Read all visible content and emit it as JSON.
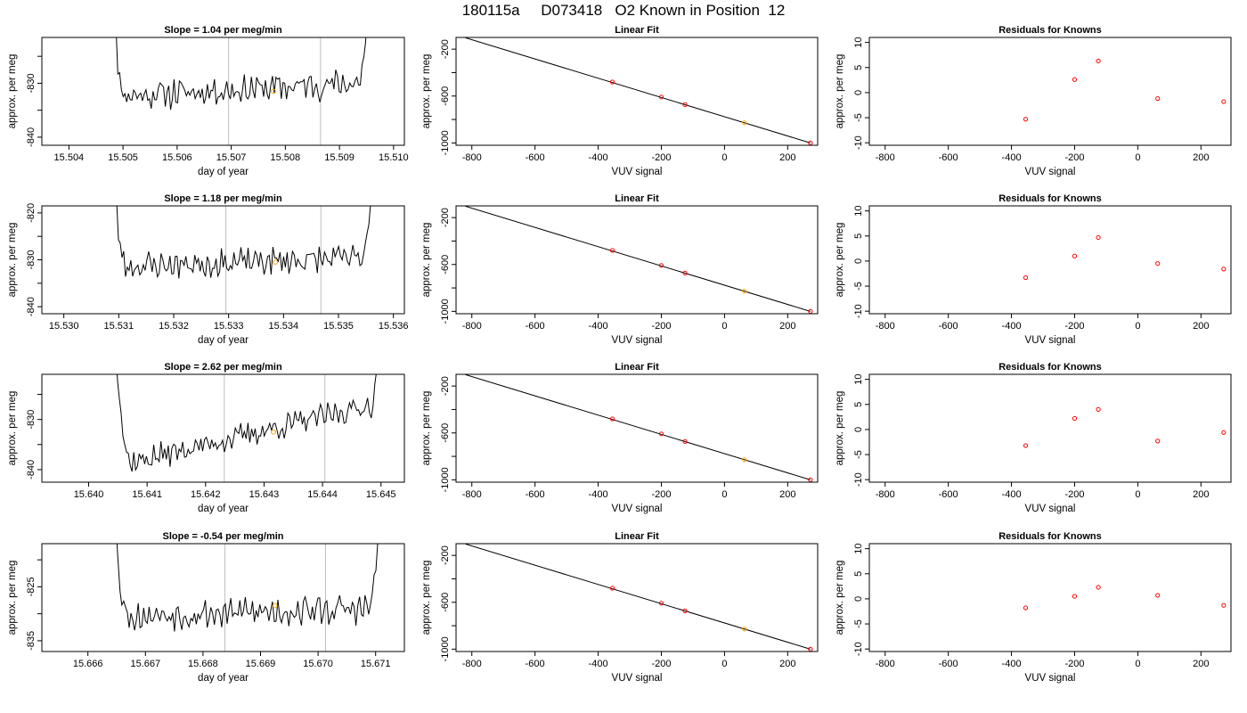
{
  "header": {
    "title": "180115a     D073418   O2 Known in Position  12"
  },
  "colors": {
    "line": "#000000",
    "vline": "#bebebe",
    "known_point": "#ff0000",
    "marker": "#ffa500",
    "frame": "#000000"
  },
  "chart_data": [
    {
      "type": "line",
      "row": 1,
      "title": "Slope =  1.04  per meg/min",
      "xlabel": "day of year",
      "ylabel": "approx. per meg",
      "xlim": [
        15.5035,
        15.5102
      ],
      "ylim": [
        -841.5,
        -821.5
      ],
      "xticks": [
        15.504,
        15.505,
        15.506,
        15.507,
        15.508,
        15.509,
        15.51
      ],
      "xticklabels": [
        "15.504",
        "15.505",
        "15.506",
        "15.507",
        "15.508",
        "15.509",
        "15.510"
      ],
      "yticks": [
        -840,
        -835,
        -830,
        -825
      ],
      "yticklabels": [
        "-840",
        "",
        "-830",
        ""
      ],
      "vlines": [
        15.50695,
        15.50865
      ],
      "marker": {
        "x": 15.50778,
        "y": -831.5
      },
      "trace": {
        "x_start": 15.50471,
        "x_end": 15.50958,
        "baseline_start": -832.5,
        "baseline_end": -829.8,
        "noise": 2.2,
        "seed": 11
      }
    },
    {
      "type": "scatter",
      "row": 1,
      "title": "Linear Fit",
      "xlabel": "VUV signal",
      "ylabel": "approx. per meg",
      "xlim": [
        -850,
        295
      ],
      "ylim": [
        -1020,
        -100
      ],
      "xticks": [
        -800,
        -600,
        -400,
        -200,
        0,
        200
      ],
      "xticklabels": [
        "-800",
        "-600",
        "-400",
        "-200",
        "0",
        "200"
      ],
      "yticks": [
        -1000,
        -800,
        -600,
        -400,
        -200
      ],
      "yticklabels": [
        "-1000",
        "",
        "-600",
        "",
        "-200"
      ],
      "points": [
        [
          -355,
          -480
        ],
        [
          -200,
          -608
        ],
        [
          -125,
          -673
        ],
        [
          63,
          -828
        ],
        [
          272,
          -1000
        ]
      ],
      "highlight_index": 3,
      "fit_line": {
        "x": [
          -820,
          272
        ],
        "y": [
          -103,
          -1000
        ]
      }
    },
    {
      "type": "scatter",
      "row": 1,
      "title": "Residuals for Knowns",
      "xlabel": "VUV signal",
      "ylabel": "approx. per meg",
      "xlim": [
        -850,
        295
      ],
      "ylim": [
        -10.5,
        11
      ],
      "xticks": [
        -800,
        -600,
        -400,
        -200,
        0,
        200
      ],
      "xticklabels": [
        "-800",
        "-600",
        "-400",
        "-200",
        "0",
        "200"
      ],
      "yticks": [
        -10,
        -5,
        0,
        5,
        10
      ],
      "yticklabels": [
        "-10",
        "-5",
        "0",
        "5",
        "10"
      ],
      "points": [
        [
          -355,
          -5.3
        ],
        [
          -200,
          2.6
        ],
        [
          -125,
          6.3
        ],
        [
          63,
          -1.2
        ],
        [
          272,
          -1.8
        ]
      ]
    },
    {
      "type": "line",
      "row": 2,
      "title": "Slope =  1.18  per meg/min",
      "xlabel": "day of year",
      "ylabel": "approx. per meg",
      "xlim": [
        15.5296,
        15.5362
      ],
      "ylim": [
        -841.5,
        -818.5
      ],
      "xticks": [
        15.53,
        15.531,
        15.532,
        15.533,
        15.534,
        15.535,
        15.536
      ],
      "xticklabels": [
        "15.530",
        "15.531",
        "15.532",
        "15.533",
        "15.534",
        "15.535",
        "15.536"
      ],
      "yticks": [
        -840,
        -835,
        -830,
        -825,
        -820
      ],
      "yticklabels": [
        "-840",
        "",
        "-830",
        "",
        "-820"
      ],
      "vlines": [
        15.53295,
        15.53468
      ],
      "marker": {
        "x": 15.53385,
        "y": -830.5
      },
      "trace": {
        "x_start": 15.5308,
        "x_end": 15.53565,
        "baseline_start": -831.5,
        "baseline_end": -829.5,
        "noise": 2.4,
        "seed": 23
      }
    },
    {
      "type": "scatter",
      "row": 2,
      "title": "Linear Fit",
      "xlabel": "VUV signal",
      "ylabel": "approx. per meg",
      "xlim": [
        -850,
        295
      ],
      "ylim": [
        -1020,
        -100
      ],
      "xticks": [
        -800,
        -600,
        -400,
        -200,
        0,
        200
      ],
      "xticklabels": [
        "-800",
        "-600",
        "-400",
        "-200",
        "0",
        "200"
      ],
      "yticks": [
        -1000,
        -800,
        -600,
        -400,
        -200
      ],
      "yticklabels": [
        "-1000",
        "",
        "-600",
        "",
        "-200"
      ],
      "points": [
        [
          -355,
          -480
        ],
        [
          -200,
          -608
        ],
        [
          -125,
          -673
        ],
        [
          63,
          -828
        ],
        [
          272,
          -1000
        ]
      ],
      "highlight_index": 3,
      "fit_line": {
        "x": [
          -820,
          272
        ],
        "y": [
          -103,
          -1000
        ]
      }
    },
    {
      "type": "scatter",
      "row": 2,
      "title": "Residuals for Knowns",
      "xlabel": "VUV signal",
      "ylabel": "approx. per meg",
      "xlim": [
        -850,
        295
      ],
      "ylim": [
        -10.5,
        11
      ],
      "xticks": [
        -800,
        -600,
        -400,
        -200,
        0,
        200
      ],
      "xticklabels": [
        "-800",
        "-600",
        "-400",
        "-200",
        "0",
        "200"
      ],
      "yticks": [
        -10,
        -5,
        0,
        5,
        10
      ],
      "yticklabels": [
        "-10",
        "-5",
        "0",
        "5",
        "10"
      ],
      "points": [
        [
          -355,
          -3.3
        ],
        [
          -200,
          1.0
        ],
        [
          -125,
          4.7
        ],
        [
          63,
          -0.5
        ],
        [
          272,
          -1.6
        ]
      ]
    },
    {
      "type": "line",
      "row": 3,
      "title": "Slope =  2.62  per meg/min",
      "xlabel": "day of year",
      "ylabel": "approx. per meg",
      "xlim": [
        15.6392,
        15.6454
      ],
      "ylim": [
        -842.5,
        -821
      ],
      "xticks": [
        15.64,
        15.641,
        15.642,
        15.643,
        15.644,
        15.645
      ],
      "xticklabels": [
        "15.640",
        "15.641",
        "15.642",
        "15.643",
        "15.644",
        "15.645"
      ],
      "yticks": [
        -840,
        -835,
        -830,
        -825
      ],
      "yticklabels": [
        "-840",
        "",
        "-830",
        ""
      ],
      "vlines": [
        15.64232,
        15.64404
      ],
      "marker": {
        "x": 15.64316,
        "y": -832.5
      },
      "trace": {
        "x_start": 15.6404,
        "x_end": 15.64505,
        "baseline_start": -839.5,
        "baseline_end": -826.5,
        "noise": 2.0,
        "seed": 37
      }
    },
    {
      "type": "scatter",
      "row": 3,
      "title": "Linear Fit",
      "xlabel": "VUV signal",
      "ylabel": "approx. per meg",
      "xlim": [
        -850,
        295
      ],
      "ylim": [
        -1020,
        -100
      ],
      "xticks": [
        -800,
        -600,
        -400,
        -200,
        0,
        200
      ],
      "xticklabels": [
        "-800",
        "-600",
        "-400",
        "-200",
        "0",
        "200"
      ],
      "yticks": [
        -1000,
        -800,
        -600,
        -400,
        -200
      ],
      "yticklabels": [
        "-1000",
        "",
        "-600",
        "",
        "-200"
      ],
      "points": [
        [
          -355,
          -480
        ],
        [
          -200,
          -608
        ],
        [
          -125,
          -673
        ],
        [
          63,
          -828
        ],
        [
          272,
          -1000
        ]
      ],
      "highlight_index": 3,
      "fit_line": {
        "x": [
          -820,
          272
        ],
        "y": [
          -103,
          -1000
        ]
      }
    },
    {
      "type": "scatter",
      "row": 3,
      "title": "Residuals for Knowns",
      "xlabel": "VUV signal",
      "ylabel": "approx. per meg",
      "xlim": [
        -850,
        295
      ],
      "ylim": [
        -10.5,
        11
      ],
      "xticks": [
        -800,
        -600,
        -400,
        -200,
        0,
        200
      ],
      "xticklabels": [
        "-800",
        "-600",
        "-400",
        "-200",
        "0",
        "200"
      ],
      "yticks": [
        -10,
        -5,
        0,
        5,
        10
      ],
      "yticklabels": [
        "-10",
        "-5",
        "0",
        "5",
        "10"
      ],
      "points": [
        [
          -355,
          -3.2
        ],
        [
          -200,
          2.2
        ],
        [
          -125,
          4.0
        ],
        [
          63,
          -2.3
        ],
        [
          272,
          -0.6
        ]
      ]
    },
    {
      "type": "line",
      "row": 4,
      "title": "Slope =  -0.54  per meg/min",
      "xlabel": "day of year",
      "ylabel": "approx. per meg",
      "xlim": [
        15.6652,
        15.6715
      ],
      "ylim": [
        -837,
        -817
      ],
      "xticks": [
        15.666,
        15.667,
        15.668,
        15.669,
        15.67,
        15.671
      ],
      "xticklabels": [
        "15.666",
        "15.667",
        "15.668",
        "15.669",
        "15.670",
        "15.671"
      ],
      "yticks": [
        -835,
        -830,
        -825,
        -820
      ],
      "yticklabels": [
        "-835",
        "",
        "-825",
        ""
      ],
      "vlines": [
        15.66838,
        15.67013
      ],
      "marker": {
        "x": 15.66925,
        "y": -828.5
      },
      "trace": {
        "x_start": 15.66637,
        "x_end": 15.6711,
        "baseline_start": -830.5,
        "baseline_end": -829.0,
        "noise": 2.2,
        "seed": 53
      }
    },
    {
      "type": "scatter",
      "row": 4,
      "title": "Linear Fit",
      "xlabel": "VUV signal",
      "ylabel": "approx. per meg",
      "xlim": [
        -850,
        295
      ],
      "ylim": [
        -1020,
        -100
      ],
      "xticks": [
        -800,
        -600,
        -400,
        -200,
        0,
        200
      ],
      "xticklabels": [
        "-800",
        "-600",
        "-400",
        "-200",
        "0",
        "200"
      ],
      "yticks": [
        -1000,
        -800,
        -600,
        -400,
        -200
      ],
      "yticklabels": [
        "-1000",
        "",
        "-600",
        "",
        "-200"
      ],
      "points": [
        [
          -355,
          -480
        ],
        [
          -200,
          -608
        ],
        [
          -125,
          -673
        ],
        [
          63,
          -828
        ],
        [
          272,
          -1000
        ]
      ],
      "highlight_index": 3,
      "fit_line": {
        "x": [
          -820,
          272
        ],
        "y": [
          -103,
          -1000
        ]
      }
    },
    {
      "type": "scatter",
      "row": 4,
      "title": "Residuals for Knowns",
      "xlabel": "VUV signal",
      "ylabel": "approx. per meg",
      "xlim": [
        -850,
        295
      ],
      "ylim": [
        -10.5,
        11
      ],
      "xticks": [
        -800,
        -600,
        -400,
        -200,
        0,
        200
      ],
      "xticklabels": [
        "-800",
        "-600",
        "-400",
        "-200",
        "0",
        "200"
      ],
      "yticks": [
        -10,
        -5,
        0,
        5,
        10
      ],
      "yticklabels": [
        "-10",
        "-5",
        "0",
        "5",
        "10"
      ],
      "points": [
        [
          -355,
          -1.8
        ],
        [
          -200,
          0.5
        ],
        [
          -125,
          2.3
        ],
        [
          63,
          0.7
        ],
        [
          272,
          -1.3
        ]
      ]
    }
  ]
}
